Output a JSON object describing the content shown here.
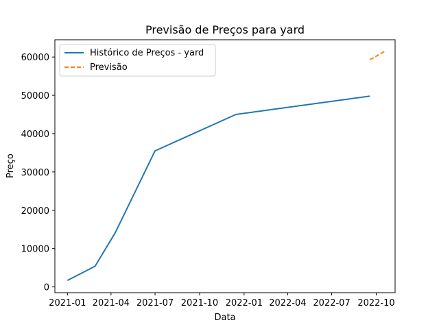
{
  "chart_data": {
    "type": "line",
    "title": "Previsão de Preços para yard",
    "xlabel": "Data",
    "ylabel": "Preço",
    "xlim": [
      "2020-12-06",
      "2022-11-09"
    ],
    "ylim": [
      -1500,
      64500
    ],
    "x_ticks": [
      "2021-01-01",
      "2021-04-01",
      "2021-07-01",
      "2021-10-01",
      "2022-01-01",
      "2022-04-01",
      "2022-07-01",
      "2022-10-01"
    ],
    "x_tick_labels": [
      "2021-01",
      "2021-04",
      "2021-07",
      "2021-10",
      "2022-01",
      "2022-04",
      "2022-07",
      "2022-10"
    ],
    "y_ticks": [
      0,
      10000,
      20000,
      30000,
      40000,
      50000,
      60000
    ],
    "y_tick_labels": [
      "0",
      "10000",
      "20000",
      "30000",
      "40000",
      "50000",
      "60000"
    ],
    "grid": false,
    "legend_position": "top-left",
    "series": [
      {
        "name": "Histórico de Preços - yard",
        "color": "#1f77b4",
        "style": "solid",
        "x": [
          "2021-01-01",
          "2021-02-27",
          "2021-04-10",
          "2021-07-01",
          "2021-12-15",
          "2022-09-18"
        ],
        "y": [
          1700,
          5400,
          14200,
          35500,
          45000,
          49800
        ]
      },
      {
        "name": "Previsão",
        "color": "#ff7f0e",
        "style": "dashed",
        "x": [
          "2022-09-18",
          "2022-10-05",
          "2022-10-20"
        ],
        "y": [
          59300,
          60500,
          61600
        ]
      }
    ]
  }
}
